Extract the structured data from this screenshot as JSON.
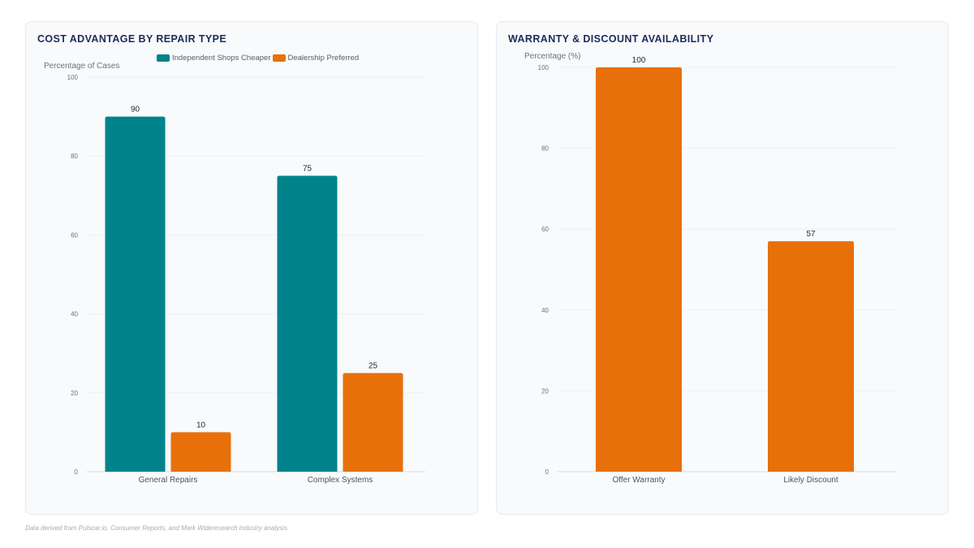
{
  "footnote": "Data derived from Pulscar.io, Consumer Reports, and Mark Wideresearch industry analysis.",
  "colors": {
    "teal": "#00838a",
    "orange": "#e8700a",
    "grid": "#eef1f5",
    "axis": "#d8dde5",
    "tick": "#6b7280",
    "label": "#1f2937"
  },
  "chart_data": [
    {
      "type": "bar",
      "title": "COST ADVANTAGE BY REPAIR TYPE",
      "ylabel": "Percentage of Cases",
      "xlabel": "",
      "categories": [
        "General Repairs",
        "Complex Systems"
      ],
      "series": [
        {
          "name": "Independent Shops Cheaper",
          "color": "#00838a",
          "values": [
            90,
            75
          ]
        },
        {
          "name": "Dealership Preferred",
          "color": "#e8700a",
          "values": [
            10,
            25
          ]
        }
      ],
      "ylim": [
        0,
        100
      ],
      "yticks": [
        0,
        20,
        40,
        60,
        80,
        100
      ],
      "legend": "top-center",
      "grid": true
    },
    {
      "type": "bar",
      "title": "WARRANTY & DISCOUNT AVAILABILITY",
      "ylabel": "Percentage (%)",
      "xlabel": "",
      "categories": [
        "Offer Warranty",
        "Likely Discount"
      ],
      "series": [
        {
          "name": "",
          "color": "#e8700a",
          "values": [
            100,
            57
          ]
        }
      ],
      "ylim": [
        0,
        100
      ],
      "yticks": [
        0,
        20,
        40,
        60,
        80,
        100
      ],
      "legend": "none",
      "grid": true
    }
  ]
}
